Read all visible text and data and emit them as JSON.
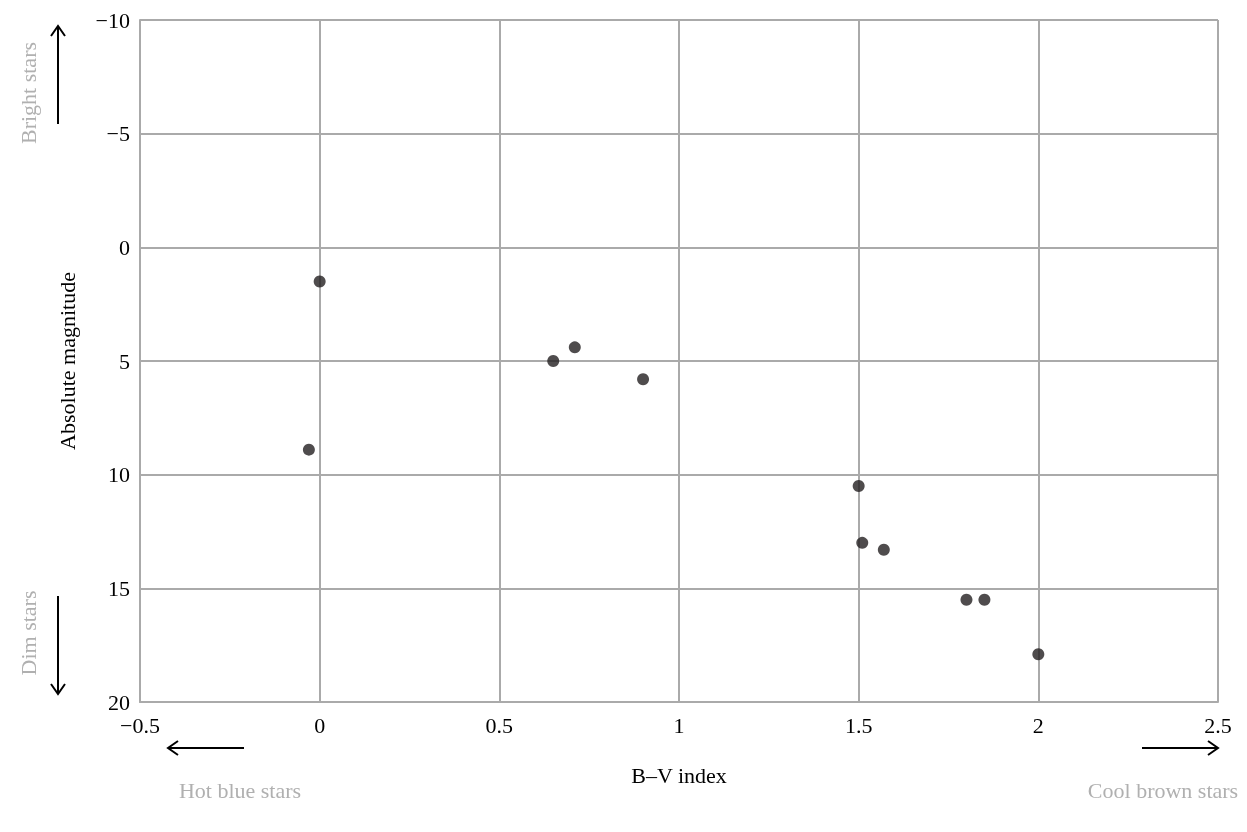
{
  "chart_data": {
    "type": "scatter",
    "xlabel": "B–V index",
    "ylabel": "Absolute magnitude",
    "x": [
      0.0,
      -0.03,
      0.65,
      0.71,
      0.9,
      1.5,
      1.51,
      1.57,
      1.8,
      1.85,
      2.0
    ],
    "values": [
      1.5,
      8.9,
      5.0,
      4.4,
      5.8,
      10.5,
      13.0,
      13.3,
      15.5,
      15.5,
      17.9
    ],
    "color": "#231f20",
    "marker": "circle",
    "grid": true,
    "xlim": [
      -0.5,
      2.5
    ],
    "xticks": [
      {
        "value": -0.5,
        "label": "−0.5"
      },
      0,
      0.5,
      1,
      1.5,
      2,
      2.5
    ],
    "ylim": [
      20,
      -10
    ],
    "yticks": [
      {
        "value": -10,
        "label": "−10"
      },
      {
        "value": -5,
        "label": "−5"
      },
      0,
      5,
      10,
      15,
      20
    ],
    "annotations": [
      "Bright stars",
      "Dim stars",
      "Hot blue stars",
      "Cool brown stars"
    ]
  }
}
